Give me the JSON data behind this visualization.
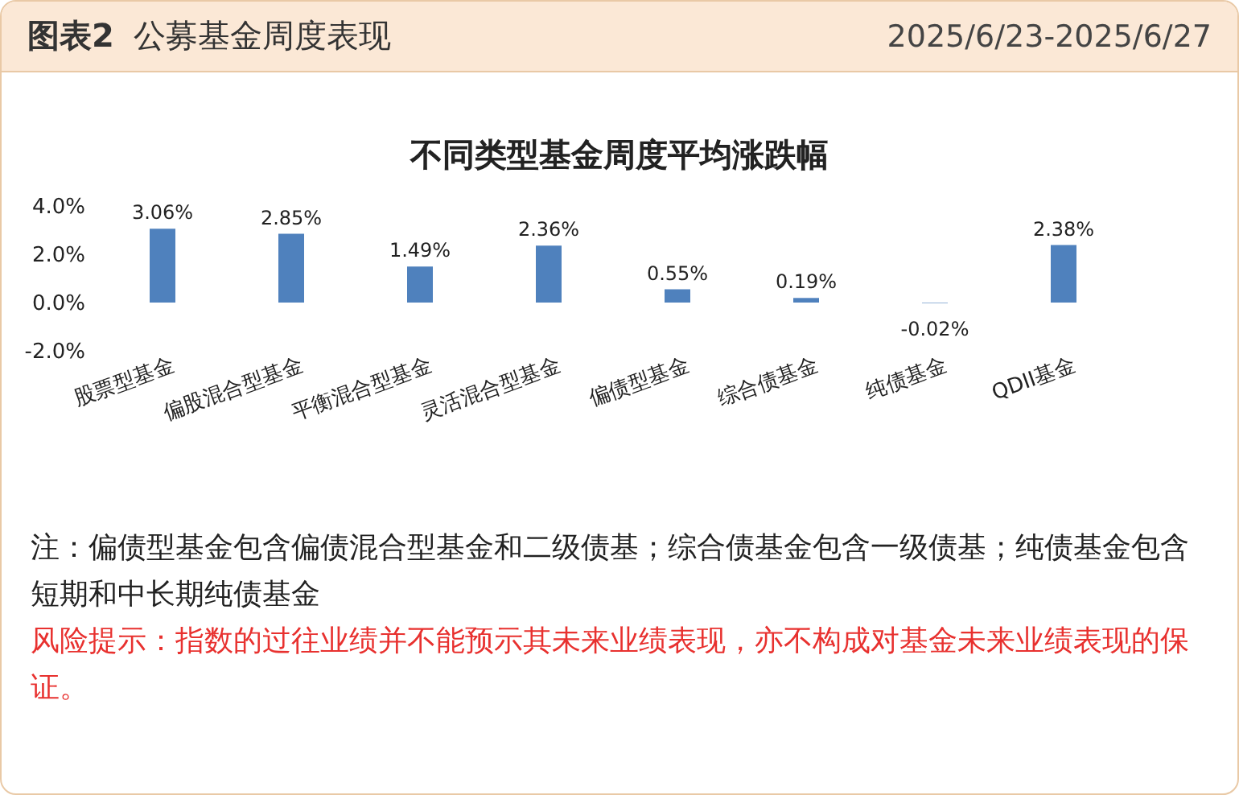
{
  "chart_data": {
    "type": "bar",
    "title": "不同类型基金周度平均涨跌幅",
    "categories": [
      "股票型基金",
      "偏股混合型基金",
      "平衡混合型基金",
      "灵活混合型基金",
      "偏债型基金",
      "综合债基金",
      "纯债基金",
      "QDII基金"
    ],
    "values": [
      3.06,
      2.85,
      1.49,
      2.36,
      0.55,
      0.19,
      -0.02,
      2.38
    ],
    "value_labels": [
      "3.06%",
      "2.85%",
      "1.49%",
      "2.36%",
      "0.55%",
      "0.19%",
      "-0.02%",
      "2.38%"
    ],
    "color": "#4f81bd",
    "ylim": [
      -2,
      4
    ],
    "yticks": [
      {
        "value": -2,
        "label": "-2.0%"
      },
      {
        "value": 0,
        "label": "0.0%"
      },
      {
        "value": 2,
        "label": "2.0%"
      },
      {
        "value": 4,
        "label": "4.0%"
      }
    ],
    "grid": false,
    "legend": false,
    "annotations": [
      "图表2",
      "公募基金周度表现",
      "2025/6/23-2025/6/27",
      "注：偏债型基金包含偏债混合型基金和二级债基；综合债基金包含一级债基；纯债基金包含短期和中长期纯债基金",
      "风险提示：指数的过往业绩并不能预示其未来业绩表现，亦不构成对基金未来业绩表现的保证。"
    ]
  }
}
